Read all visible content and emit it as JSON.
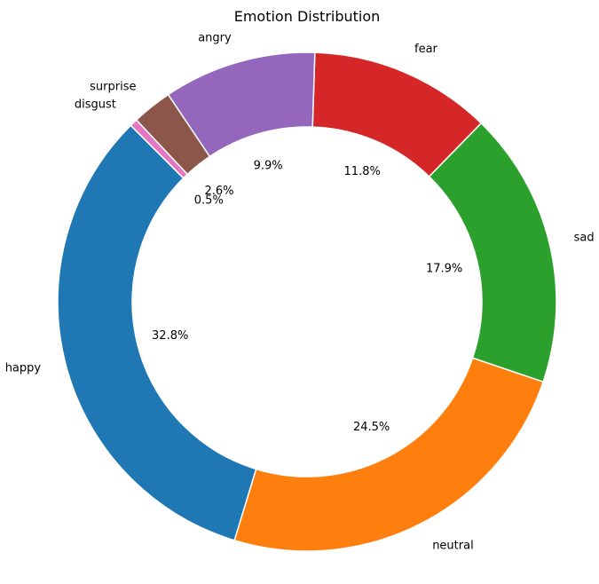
{
  "chart_data": {
    "type": "pie",
    "style": "donut",
    "title": "Emotion Distribution",
    "start_angle_deg": 135,
    "direction": "counterclockwise",
    "categories": [
      "happy",
      "neutral",
      "sad",
      "fear",
      "angry",
      "surprise",
      "disgust"
    ],
    "values": [
      32.8,
      24.5,
      17.9,
      11.8,
      9.9,
      2.6,
      0.5
    ],
    "percent_labels": [
      "32.8%",
      "24.5%",
      "17.9%",
      "11.8%",
      "9.9%",
      "2.6%",
      "0.5%"
    ],
    "colors": [
      "#1f77b4",
      "#ff7f0e",
      "#2ca02c",
      "#d62728",
      "#9467bd",
      "#8c564b",
      "#e377c2"
    ],
    "edge_color": "#ffffff",
    "legend": "none"
  }
}
